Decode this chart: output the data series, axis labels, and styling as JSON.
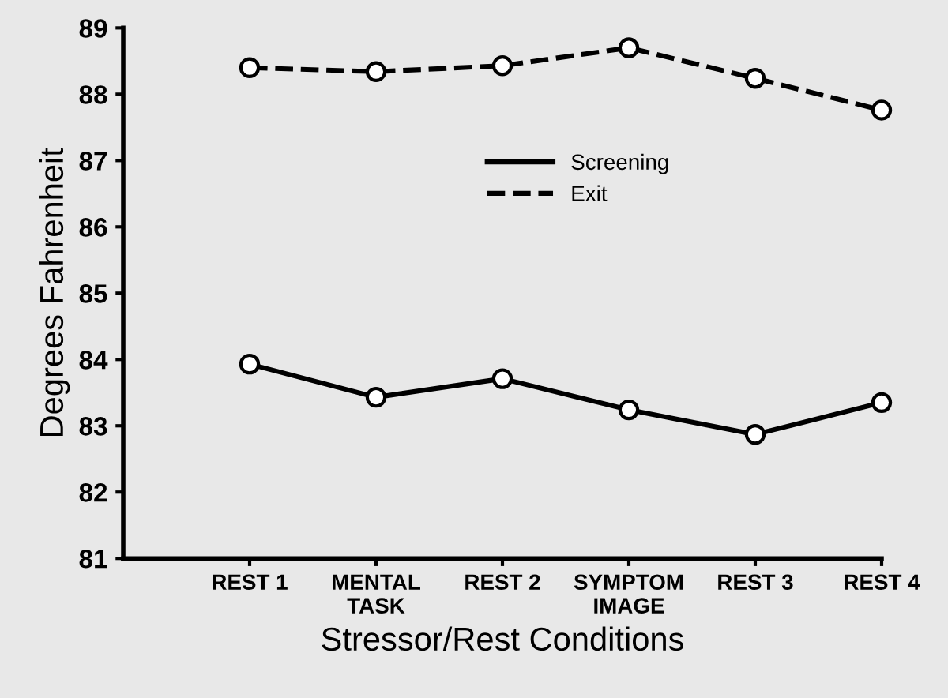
{
  "chart_data": {
    "type": "line",
    "xlabel": "Stressor/Rest Conditions",
    "ylabel": "Degrees Fahrenheit",
    "categories": [
      "REST 1",
      "MENTAL\nTASK",
      "REST 2",
      "SYMPTOM\nIMAGE",
      "REST 3",
      "REST 4"
    ],
    "series": [
      {
        "name": "Screening",
        "color": "#000000",
        "line_style": "solid",
        "values": [
          83.93,
          83.43,
          83.71,
          83.24,
          82.87,
          83.35
        ]
      },
      {
        "name": "Exit",
        "color": "#000000",
        "line_style": "dashed",
        "values": [
          88.4,
          88.34,
          88.43,
          88.7,
          88.24,
          87.76
        ]
      }
    ],
    "ylim": [
      81,
      89
    ],
    "yticks": [
      81,
      82,
      83,
      84,
      85,
      86,
      87,
      88,
      89
    ],
    "marker": "circle",
    "grid": false,
    "legend": "top"
  }
}
